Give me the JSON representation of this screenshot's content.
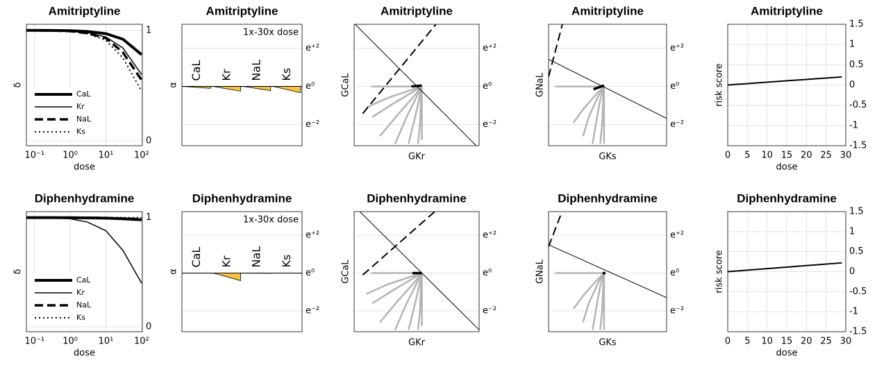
{
  "chart_data": [
    {
      "type": "dose-response",
      "title": "Amitriptyline",
      "xscale": "log",
      "xlabel": "dose",
      "ylabel": "δ",
      "x": [
        0.03,
        0.1,
        0.3,
        1,
        3,
        10,
        30,
        100
      ],
      "xlim": [
        0.059,
        105
      ],
      "xticks": [
        {
          "value": 0.1,
          "label": "10⁻¹"
        },
        {
          "value": 1,
          "label": "10⁰"
        },
        {
          "value": 10,
          "label": "10¹"
        },
        {
          "value": 100,
          "label": "10²"
        }
      ],
      "ylim": [
        -0.045,
        1.055
      ],
      "yticks": [
        0,
        1
      ],
      "grid": true,
      "legend": "lower left",
      "series": [
        {
          "name": "CaL",
          "color": "#000000",
          "style": "solid",
          "width": 4,
          "values": [
            1,
            1,
            0.999,
            0.997,
            0.99,
            0.97,
            0.92,
            0.78
          ]
        },
        {
          "name": "Kr",
          "color": "#000000",
          "style": "solid",
          "width": 1.5,
          "values": [
            1,
            1,
            0.998,
            0.994,
            0.98,
            0.94,
            0.84,
            0.6
          ]
        },
        {
          "name": "NaL",
          "color": "#000000",
          "style": "dashed",
          "width": 3.5,
          "values": [
            1,
            1,
            0.998,
            0.993,
            0.975,
            0.93,
            0.8,
            0.55
          ]
        },
        {
          "name": "Ks",
          "color": "#000000",
          "style": "dotted",
          "width": 2,
          "values": [
            1,
            0.999,
            0.996,
            0.99,
            0.97,
            0.91,
            0.75,
            0.45
          ]
        }
      ]
    },
    {
      "type": "wedge",
      "title": "Amitriptyline",
      "ylabel": "α",
      "annotation": "1x-30x dose",
      "categories": [
        "CaL",
        "Kr",
        "NaL",
        "Ks"
      ],
      "values": [
        -0.1,
        -0.25,
        -0.22,
        -0.33
      ],
      "color": "#f5c244",
      "ylim": [
        -3.1,
        3.25
      ],
      "yticks": [
        {
          "value": 2,
          "label": "e⁺²"
        },
        {
          "value": 0,
          "label": "e⁰"
        },
        {
          "value": -2,
          "label": "e⁻²"
        }
      ],
      "grid": true
    },
    {
      "type": "trajectory",
      "title": "Amitriptyline",
      "xlabel": "GKr",
      "ylabel": "GCaL",
      "xlim": [
        -3.55,
        3.0
      ],
      "ylim": [
        -3.1,
        3.25
      ],
      "yticks": [
        {
          "value": 2,
          "label": "e⁺²"
        },
        {
          "value": 0,
          "label": "e⁰"
        },
        {
          "value": -2,
          "label": "e⁻²"
        }
      ],
      "grid": true,
      "trace_color": "#b3b3b3",
      "traces": [
        {
          "x": [
            -2.65,
            0
          ],
          "y": [
            0,
            0
          ]
        },
        {
          "x": [
            0,
            -0.6,
            -1.8,
            -2.9
          ],
          "y": [
            0,
            -0.2,
            -0.6,
            -1.1
          ]
        },
        {
          "x": [
            0,
            -0.5,
            -1.5,
            -2.6
          ],
          "y": [
            0,
            -0.3,
            -0.9,
            -1.6
          ]
        },
        {
          "x": [
            0,
            -0.4,
            -1.2,
            -2.2
          ],
          "y": [
            0,
            -0.5,
            -1.4,
            -2.6
          ]
        },
        {
          "x": [
            0,
            -0.3,
            -0.8,
            -1.4
          ],
          "y": [
            0,
            -0.6,
            -1.6,
            -3.0
          ]
        },
        {
          "x": [
            0,
            -0.15,
            -0.4,
            -0.7
          ],
          "y": [
            0,
            -0.7,
            -1.8,
            -3.0
          ]
        },
        {
          "x": [
            0,
            -0.05,
            -0.1,
            -0.2
          ],
          "y": [
            0,
            -0.8,
            -2,
            -3.0
          ]
        },
        {
          "x": [
            0,
            0,
            0
          ],
          "y": [
            0,
            -1.4,
            -2.8
          ]
        }
      ],
      "series": [
        {
          "color": "#000000",
          "style": "solid",
          "x": [
            -3.55,
            3.0
          ],
          "y": [
            3.3,
            -3.25
          ]
        },
        {
          "color": "#000000",
          "style": "dashed",
          "x": [
            -3.1,
            0.73
          ],
          "y": [
            -1.42,
            3.24
          ]
        },
        {
          "color": "#000000",
          "style": "bold",
          "x": [
            -0.55,
            0
          ],
          "y": [
            0,
            0.05
          ]
        }
      ]
    },
    {
      "type": "trajectory",
      "title": "Amitriptyline",
      "xlabel": "GKs",
      "ylabel": "GNaL",
      "xlim": [
        -2.9,
        3.27
      ],
      "ylim": [
        -3.1,
        3.25
      ],
      "yticks": [
        {
          "value": 2,
          "label": "e⁺²"
        },
        {
          "value": 0,
          "label": "e⁰"
        },
        {
          "value": -2,
          "label": "e⁻²"
        }
      ],
      "grid": true,
      "trace_color": "#b3b3b3",
      "traces": [
        {
          "x": [
            -2.55,
            0
          ],
          "y": [
            0,
            0
          ]
        },
        {
          "x": [
            0,
            -0.4,
            -1.1,
            -1.6
          ],
          "y": [
            0,
            -0.4,
            -1.2,
            -1.9
          ]
        },
        {
          "x": [
            0,
            -0.3,
            -0.8,
            -1.1
          ],
          "y": [
            0,
            -0.5,
            -1.6,
            -2.6
          ]
        },
        {
          "x": [
            0,
            -0.2,
            -0.4,
            -0.6
          ],
          "y": [
            0,
            -0.7,
            -1.8,
            -3.0
          ]
        },
        {
          "x": [
            0,
            -0.05,
            -0.1,
            -0.2
          ],
          "y": [
            0,
            -0.8,
            -2,
            -3.0
          ]
        },
        {
          "x": [
            0,
            0,
            0
          ],
          "y": [
            0,
            -1.5,
            -3.0
          ]
        }
      ],
      "series": [
        {
          "color": "#000000",
          "style": "solid",
          "x": [
            -2.9,
            3.27
          ],
          "y": [
            1.42,
            -1.67
          ]
        },
        {
          "color": "#000000",
          "style": "dashed",
          "x": [
            -2.9,
            -2.18
          ],
          "y": [
            0.5,
            3.24
          ]
        },
        {
          "color": "#000000",
          "style": "bold",
          "x": [
            -0.55,
            0
          ],
          "y": [
            -0.15,
            0.05
          ]
        }
      ]
    },
    {
      "type": "risk",
      "title": "Amitriptyline",
      "xlabel": "dose",
      "ylabel": "risk score",
      "x": [
        0,
        29
      ],
      "values": [
        0,
        0.2
      ],
      "color": "#000000",
      "xlim": [
        0,
        30
      ],
      "xticks": [
        0,
        5,
        10,
        15,
        20,
        25,
        30
      ],
      "ylim": [
        -1.5,
        1.5
      ],
      "yticks": [
        -1.5,
        -1,
        -0.5,
        0,
        0.5,
        1,
        1.5
      ],
      "grid": true
    },
    {
      "type": "dose-response",
      "title": "Diphenhydramine",
      "xscale": "log",
      "xlabel": "dose",
      "ylabel": "δ",
      "x": [
        0.03,
        0.1,
        0.3,
        1,
        3,
        10,
        30,
        100
      ],
      "xlim": [
        0.059,
        105
      ],
      "xticks": [
        {
          "value": 0.1,
          "label": "10⁻¹"
        },
        {
          "value": 1,
          "label": "10⁰"
        },
        {
          "value": 10,
          "label": "10¹"
        },
        {
          "value": 100,
          "label": "10²"
        }
      ],
      "ylim": [
        -0.045,
        1.055
      ],
      "yticks": [
        0,
        1
      ],
      "grid": true,
      "legend": "lower left",
      "series": [
        {
          "name": "CaL",
          "color": "#000000",
          "style": "solid",
          "width": 4,
          "values": [
            1,
            1,
            1,
            0.999,
            0.998,
            0.995,
            0.99,
            0.98
          ]
        },
        {
          "name": "Kr",
          "color": "#000000",
          "style": "solid",
          "width": 1.5,
          "values": [
            1,
            1,
            0.998,
            0.99,
            0.96,
            0.88,
            0.7,
            0.4
          ]
        },
        {
          "name": "NaL",
          "color": "#000000",
          "style": "dashed",
          "width": 3.5,
          "values": [
            1,
            1,
            1,
            1,
            0.999,
            0.997,
            0.993,
            0.985
          ]
        },
        {
          "name": "Ks",
          "color": "#000000",
          "style": "dotted",
          "width": 2,
          "values": [
            1,
            1,
            1,
            1,
            1,
            1,
            1,
            1
          ]
        }
      ]
    },
    {
      "type": "wedge",
      "title": "Diphenhydramine",
      "ylabel": "α",
      "annotation": "1x-30x dose",
      "categories": [
        "CaL",
        "Kr",
        "NaL",
        "Ks"
      ],
      "values": [
        0,
        -0.4,
        -0.01,
        0
      ],
      "color": "#f5c244",
      "ylim": [
        -3.1,
        3.25
      ],
      "yticks": [
        {
          "value": 2,
          "label": "e⁺²"
        },
        {
          "value": 0,
          "label": "e⁰"
        },
        {
          "value": -2,
          "label": "e⁻²"
        }
      ],
      "grid": true
    },
    {
      "type": "trajectory",
      "title": "Diphenhydramine",
      "xlabel": "GKr",
      "ylabel": "GCaL",
      "xlim": [
        -3.55,
        3.0
      ],
      "ylim": [
        -3.1,
        3.25
      ],
      "yticks": [
        {
          "value": 2,
          "label": "e⁺²"
        },
        {
          "value": 0,
          "label": "e⁰"
        },
        {
          "value": -2,
          "label": "e⁻²"
        }
      ],
      "grid": true,
      "trace_color": "#b3b3b3",
      "traces": [
        {
          "x": [
            -2.65,
            0
          ],
          "y": [
            0,
            0
          ]
        },
        {
          "x": [
            0,
            -0.6,
            -1.8,
            -2.9
          ],
          "y": [
            0,
            -0.2,
            -0.6,
            -1.1
          ]
        },
        {
          "x": [
            0,
            -0.5,
            -1.5,
            -2.6
          ],
          "y": [
            0,
            -0.3,
            -0.9,
            -1.6
          ]
        },
        {
          "x": [
            0,
            -0.4,
            -1.2,
            -2.2
          ],
          "y": [
            0,
            -0.5,
            -1.4,
            -2.6
          ]
        },
        {
          "x": [
            0,
            -0.3,
            -0.8,
            -1.4
          ],
          "y": [
            0,
            -0.6,
            -1.6,
            -3.0
          ]
        },
        {
          "x": [
            0,
            -0.15,
            -0.4,
            -0.7
          ],
          "y": [
            0,
            -0.7,
            -1.8,
            -3.0
          ]
        },
        {
          "x": [
            0,
            -0.05,
            -0.1,
            -0.2
          ],
          "y": [
            0,
            -0.8,
            -2,
            -3.0
          ]
        },
        {
          "x": [
            0,
            0,
            0
          ],
          "y": [
            0,
            -1.4,
            -2.8
          ]
        }
      ],
      "series": [
        {
          "color": "#000000",
          "style": "solid",
          "x": [
            -3.55,
            3.0
          ],
          "y": [
            3.55,
            -3.0
          ]
        },
        {
          "color": "#000000",
          "style": "dashed",
          "x": [
            -3.1,
            0.73
          ],
          "y": [
            -0.1,
            3.3
          ]
        },
        {
          "color": "#000000",
          "style": "bold",
          "x": [
            -0.5,
            0
          ],
          "y": [
            0,
            0
          ]
        }
      ]
    },
    {
      "type": "trajectory",
      "title": "Diphenhydramine",
      "xlabel": "GKs",
      "ylabel": "GNaL",
      "xlim": [
        -2.9,
        3.27
      ],
      "ylim": [
        -3.1,
        3.25
      ],
      "yticks": [
        {
          "value": 2,
          "label": "e⁺²"
        },
        {
          "value": 0,
          "label": "e⁰"
        },
        {
          "value": -2,
          "label": "e⁻²"
        }
      ],
      "grid": true,
      "trace_color": "#b3b3b3",
      "traces": [
        {
          "x": [
            -2.55,
            0
          ],
          "y": [
            0,
            0
          ]
        },
        {
          "x": [
            0,
            -0.4,
            -1.1,
            -1.6
          ],
          "y": [
            0,
            -0.4,
            -1.2,
            -1.9
          ]
        },
        {
          "x": [
            0,
            -0.3,
            -0.8,
            -1.1
          ],
          "y": [
            0,
            -0.5,
            -1.6,
            -2.6
          ]
        },
        {
          "x": [
            0,
            -0.2,
            -0.4,
            -0.6
          ],
          "y": [
            0,
            -0.7,
            -1.8,
            -3.0
          ]
        },
        {
          "x": [
            0,
            -0.05,
            -0.1,
            -0.2
          ],
          "y": [
            0,
            -0.8,
            -2,
            -3.0
          ]
        },
        {
          "x": [
            0,
            0,
            0
          ],
          "y": [
            0,
            -1.5,
            -3.0
          ]
        }
      ],
      "series": [
        {
          "color": "#000000",
          "style": "solid",
          "x": [
            -2.9,
            3.27
          ],
          "y": [
            1.5,
            -1.3
          ]
        },
        {
          "color": "#000000",
          "style": "dashed",
          "x": [
            -2.9,
            -2.18
          ],
          "y": [
            1.4,
            3.3
          ]
        },
        {
          "color": "#000000",
          "style": "bold",
          "x": [
            0
          ],
          "y": [
            0
          ]
        }
      ]
    },
    {
      "type": "risk",
      "title": "Diphenhydramine",
      "xlabel": "dose",
      "ylabel": "risk score",
      "x": [
        0,
        29
      ],
      "values": [
        0,
        0.22
      ],
      "color": "#000000",
      "xlim": [
        0,
        30
      ],
      "xticks": [
        0,
        5,
        10,
        15,
        20,
        25,
        30
      ],
      "ylim": [
        -1.5,
        1.5
      ],
      "yticks": [
        -1.5,
        -1,
        -0.5,
        0,
        0.5,
        1,
        1.5
      ],
      "grid": true
    }
  ]
}
